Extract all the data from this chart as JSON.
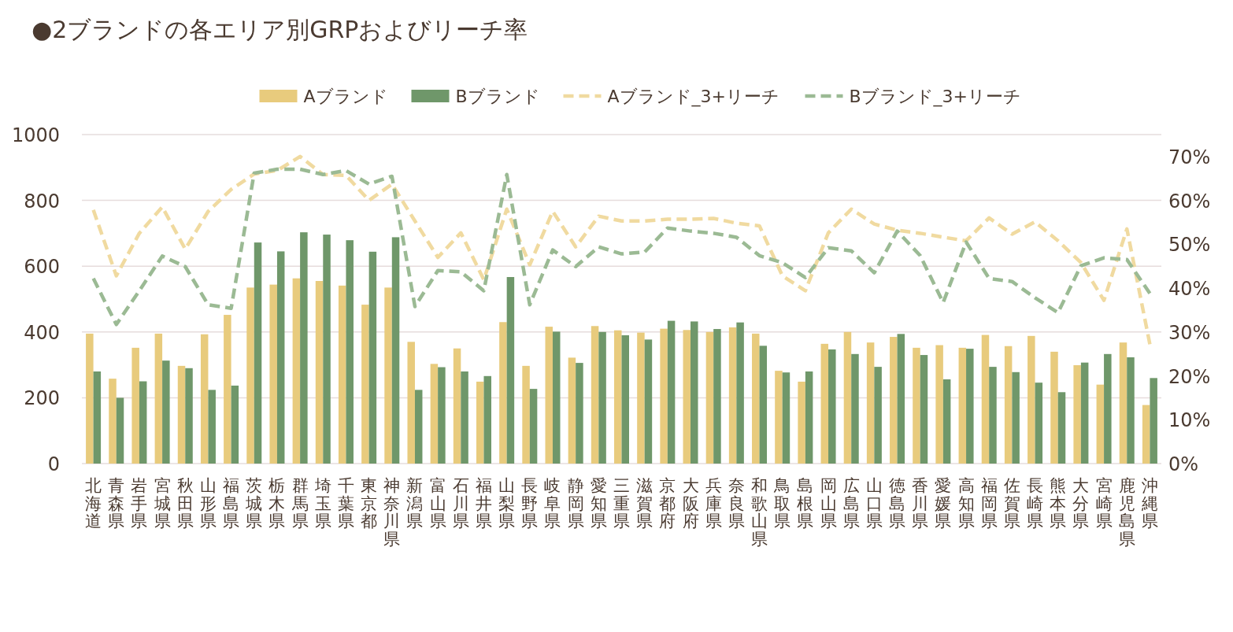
{
  "chart_data": {
    "type": "bar",
    "title": "●2ブランドの各エリア別GRPおよびリーチ率",
    "categories": [
      "北海道",
      "青森県",
      "岩手県",
      "宮城県",
      "秋田県",
      "山形県",
      "福島県",
      "茨城県",
      "栃木県",
      "群馬県",
      "埼玉県",
      "千葉県",
      "東京都",
      "神奈川県",
      "新潟県",
      "富山県",
      "石川県",
      "福井県",
      "山梨県",
      "長野県",
      "岐阜県",
      "静岡県",
      "愛知県",
      "三重県",
      "滋賀県",
      "京都府",
      "大阪府",
      "兵庫県",
      "奈良県",
      "和歌山県",
      "鳥取県",
      "島根県",
      "岡山県",
      "広島県",
      "山口県",
      "徳島県",
      "香川県",
      "愛媛県",
      "高知県",
      "福岡県",
      "佐賀県",
      "長崎県",
      "熊本県",
      "大分県",
      "宮崎県",
      "鹿児島県",
      "沖縄県"
    ],
    "series": [
      {
        "name": "Aブランド",
        "color": "#e8cb7d",
        "values": [
          395,
          258,
          352,
          395,
          297,
          393,
          452,
          535,
          544,
          563,
          555,
          541,
          483,
          535,
          370,
          303,
          350,
          249,
          430,
          297,
          416,
          322,
          418,
          405,
          398,
          410,
          406,
          400,
          414,
          395,
          282,
          249,
          364,
          400,
          368,
          385,
          352,
          360,
          352,
          391,
          357,
          388,
          340,
          299,
          240,
          368,
          178
        ]
      },
      {
        "name": "Bブランド",
        "color": "#6f976a",
        "values": [
          280,
          200,
          250,
          313,
          290,
          224,
          237,
          672,
          645,
          703,
          696,
          679,
          644,
          688,
          224,
          293,
          280,
          266,
          567,
          227,
          401,
          306,
          400,
          390,
          377,
          434,
          432,
          409,
          429,
          358,
          277,
          280,
          347,
          333,
          294,
          394,
          330,
          256,
          349,
          294,
          278,
          246,
          217,
          307,
          333,
          323,
          260
        ]
      },
      {
        "name": "Aブランド_3+リーチ",
        "type": "line",
        "axis": "y2",
        "line_style": "dashed",
        "color": "#f0daa0",
        "values": [
          57.8,
          42.8,
          52.5,
          58.5,
          48.9,
          57.5,
          62.5,
          66,
          66.8,
          70,
          65.9,
          65.7,
          60,
          63.7,
          55.3,
          47,
          52.6,
          41.9,
          58,
          45.3,
          57.5,
          49.4,
          56.4,
          55.3,
          55.3,
          55.7,
          55.7,
          55.9,
          54.8,
          54.2,
          42.8,
          39.4,
          52.6,
          58,
          54.6,
          53.2,
          52.5,
          51.6,
          50.8,
          56,
          52.3,
          55.1,
          50.8,
          45.8,
          37.2,
          53.5,
          27.2
        ]
      },
      {
        "name": "Bブランド_3+リーチ",
        "type": "line",
        "axis": "y2",
        "line_style": "dashed",
        "color": "#9bba94",
        "values": [
          42.2,
          31.7,
          39.4,
          47.3,
          44.9,
          36.2,
          35.4,
          66.2,
          67.1,
          67.1,
          65.9,
          66.8,
          63.7,
          65.5,
          35.8,
          44,
          43.7,
          39.4,
          65.9,
          36.2,
          48.7,
          44.9,
          49.4,
          47.8,
          48.2,
          53.7,
          53,
          52.5,
          51.6,
          47.4,
          45.8,
          42.4,
          49.2,
          48.5,
          43.5,
          53,
          47.4,
          36.7,
          50.5,
          42.2,
          41.5,
          37.8,
          34.4,
          45.1,
          46.9,
          46.5,
          38.8
        ]
      }
    ],
    "ylim": [
      0,
      1000
    ],
    "yticks": [
      0,
      200,
      400,
      600,
      800,
      1000
    ],
    "y2lim": [
      0,
      75
    ],
    "y2ticks": [
      {
        "value": 0,
        "label": "0%"
      },
      {
        "value": 10,
        "label": "10%"
      },
      {
        "value": 20,
        "label": "20%"
      },
      {
        "value": 30,
        "label": "30%"
      },
      {
        "value": 40,
        "label": "40%"
      },
      {
        "value": 50,
        "label": "50%"
      },
      {
        "value": 60,
        "label": "60%"
      },
      {
        "value": 70,
        "label": "70%"
      }
    ],
    "grid": "y",
    "legend": "top"
  }
}
